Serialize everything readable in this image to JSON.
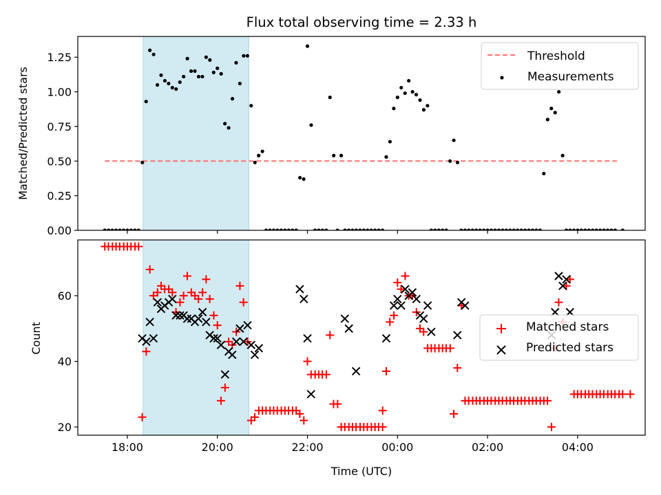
{
  "chart_data": [
    {
      "type": "scatter",
      "title": "Flux total observing time = 2.33 h",
      "xlabel": "",
      "ylabel": "Matched/Predicted stars",
      "x_unit": "hours since 00:00 of first day (UTC); values >24 are next day",
      "xlim": [
        16.9,
        29.5
      ],
      "ylim": [
        0,
        1.4
      ],
      "yticks": [
        0.0,
        0.25,
        0.5,
        0.75,
        1.0,
        1.25
      ],
      "ytick_labels": [
        "0.00",
        "0.25",
        "0.50",
        "0.75",
        "1.00",
        "1.25"
      ],
      "xticks": [
        18,
        20,
        22,
        24,
        26,
        28
      ],
      "xtick_labels": [
        "18:00",
        "20:00",
        "22:00",
        "00:00",
        "02:00",
        "04:00"
      ],
      "shaded_span": {
        "start": 18.35,
        "end": 20.7,
        "color": "#add8e6"
      },
      "threshold": {
        "name": "Threshold",
        "value": 0.5,
        "x_range": [
          17.5,
          28.9
        ],
        "color": "#ff7070",
        "style": "dashed"
      },
      "series": [
        {
          "name": "Measurements",
          "marker": "dot",
          "color": "#000000",
          "start": 17.5,
          "step_min": 5,
          "values": [
            0,
            0,
            0,
            0,
            0,
            0,
            0,
            0,
            0,
            0,
            0.49,
            0.93,
            1.3,
            1.27,
            1.05,
            1.12,
            1.08,
            1.06,
            1.03,
            1.02,
            1.07,
            1.11,
            1.24,
            1.15,
            1.15,
            1.11,
            1.11,
            1.25,
            1.23,
            1.14,
            1.17,
            1.13,
            0.77,
            0.74,
            0.95,
            1.21,
            1.06,
            1.26,
            1.26,
            0.9,
            0.49,
            0.54,
            0.57,
            0,
            0,
            0,
            0,
            0,
            0,
            0,
            0,
            0,
            0.38,
            0.37,
            1.33,
            0.76,
            0,
            0,
            0,
            0,
            0.96,
            0.54,
            0,
            0.54,
            0,
            0,
            0,
            0,
            0,
            0,
            0,
            0,
            0,
            0,
            0,
            0.53,
            0.64,
            0.88,
            0.96,
            1.03,
            0.99,
            1.08,
            1.0,
            0.98,
            0.94,
            0.87,
            0.9,
            0,
            0,
            0,
            0,
            0,
            0.5,
            0.65,
            0.49,
            0,
            0,
            0,
            0,
            0,
            0,
            0,
            0,
            0,
            0,
            0,
            0,
            0,
            0,
            0,
            0,
            0,
            0,
            0,
            0,
            0,
            0,
            0.41,
            0.8,
            0.88,
            0.85,
            1.0,
            0.54,
            0,
            0,
            0,
            0,
            0,
            0,
            0,
            0,
            0,
            0,
            0,
            0,
            0,
            0,
            null,
            0
          ]
        }
      ],
      "legend": {
        "position": "top-right",
        "entries": [
          "Threshold",
          "Measurements"
        ]
      }
    },
    {
      "type": "scatter",
      "title": "",
      "xlabel": "Time (UTC)",
      "ylabel": "Count",
      "xlim": [
        16.9,
        29.5
      ],
      "ylim": [
        17.5,
        77
      ],
      "yticks": [
        20,
        40,
        60
      ],
      "ytick_labels": [
        "20",
        "40",
        "60"
      ],
      "xticks": [
        18,
        20,
        22,
        24,
        26,
        28
      ],
      "xtick_labels": [
        "18:00",
        "20:00",
        "22:00",
        "00:00",
        "02:00",
        "04:00"
      ],
      "shaded_span": {
        "start": 18.35,
        "end": 20.7,
        "color": "#add8e6"
      },
      "series": [
        {
          "name": "Matched stars",
          "marker": "plus",
          "color": "#ff0000",
          "points": [
            [
              17.5,
              75
            ],
            [
              17.58,
              75
            ],
            [
              17.67,
              75
            ],
            [
              17.75,
              75
            ],
            [
              17.83,
              75
            ],
            [
              17.92,
              75
            ],
            [
              18.0,
              75
            ],
            [
              18.08,
              75
            ],
            [
              18.17,
              75
            ],
            [
              18.25,
              75
            ],
            [
              18.33,
              23
            ],
            [
              18.42,
              43
            ],
            [
              18.5,
              68
            ],
            [
              18.58,
              60
            ],
            [
              18.67,
              61
            ],
            [
              18.75,
              63
            ],
            [
              18.83,
              62
            ],
            [
              18.92,
              62
            ],
            [
              19.0,
              61
            ],
            [
              19.08,
              55
            ],
            [
              19.17,
              58
            ],
            [
              19.25,
              60
            ],
            [
              19.33,
              66
            ],
            [
              19.42,
              61
            ],
            [
              19.5,
              60
            ],
            [
              19.58,
              59
            ],
            [
              19.67,
              61
            ],
            [
              19.75,
              65
            ],
            [
              19.83,
              59
            ],
            [
              19.92,
              54
            ],
            [
              20.0,
              51
            ],
            [
              20.08,
              28
            ],
            [
              20.17,
              32
            ],
            [
              20.25,
              46
            ],
            [
              20.33,
              45
            ],
            [
              20.42,
              49
            ],
            [
              20.5,
              63
            ],
            [
              20.58,
              58
            ],
            [
              20.67,
              46
            ],
            [
              20.75,
              22
            ],
            [
              20.83,
              23
            ],
            [
              20.92,
              25
            ],
            [
              21.0,
              25
            ],
            [
              21.08,
              25
            ],
            [
              21.17,
              25
            ],
            [
              21.25,
              25
            ],
            [
              21.33,
              25
            ],
            [
              21.42,
              25
            ],
            [
              21.5,
              25
            ],
            [
              21.58,
              25
            ],
            [
              21.67,
              25
            ],
            [
              21.75,
              25
            ],
            [
              21.83,
              24
            ],
            [
              21.92,
              22
            ],
            [
              22.0,
              40
            ],
            [
              22.08,
              36
            ],
            [
              22.17,
              36
            ],
            [
              22.25,
              36
            ],
            [
              22.33,
              36
            ],
            [
              22.42,
              36
            ],
            [
              22.5,
              48
            ],
            [
              22.58,
              27
            ],
            [
              22.67,
              27
            ],
            [
              22.75,
              20
            ],
            [
              22.83,
              20
            ],
            [
              22.92,
              20
            ],
            [
              23.0,
              20
            ],
            [
              23.08,
              20
            ],
            [
              23.17,
              20
            ],
            [
              23.25,
              20
            ],
            [
              23.33,
              20
            ],
            [
              23.42,
              20
            ],
            [
              23.5,
              20
            ],
            [
              23.58,
              20
            ],
            [
              23.67,
              20
            ],
            [
              23.67,
              25
            ],
            [
              23.75,
              37
            ],
            [
              23.83,
              52
            ],
            [
              23.92,
              54
            ],
            [
              24.0,
              64
            ],
            [
              24.08,
              62
            ],
            [
              24.17,
              66
            ],
            [
              24.25,
              60
            ],
            [
              24.33,
              60
            ],
            [
              24.42,
              55
            ],
            [
              24.5,
              50
            ],
            [
              24.58,
              49
            ],
            [
              24.67,
              44
            ],
            [
              24.75,
              44
            ],
            [
              24.83,
              44
            ],
            [
              24.92,
              44
            ],
            [
              25.0,
              44
            ],
            [
              25.08,
              44
            ],
            [
              25.17,
              44
            ],
            [
              25.25,
              24
            ],
            [
              25.33,
              38
            ],
            [
              25.42,
              57
            ],
            [
              25.5,
              28
            ],
            [
              25.58,
              28
            ],
            [
              25.67,
              28
            ],
            [
              25.75,
              28
            ],
            [
              25.83,
              28
            ],
            [
              25.92,
              28
            ],
            [
              26.0,
              28
            ],
            [
              26.08,
              28
            ],
            [
              26.17,
              28
            ],
            [
              26.25,
              28
            ],
            [
              26.33,
              28
            ],
            [
              26.42,
              28
            ],
            [
              26.5,
              28
            ],
            [
              26.58,
              28
            ],
            [
              26.67,
              28
            ],
            [
              26.75,
              28
            ],
            [
              26.83,
              28
            ],
            [
              26.92,
              28
            ],
            [
              27.0,
              28
            ],
            [
              27.08,
              28
            ],
            [
              27.17,
              28
            ],
            [
              27.25,
              28
            ],
            [
              27.33,
              28
            ],
            [
              27.42,
              20
            ],
            [
              27.5,
              44
            ],
            [
              27.58,
              58
            ],
            [
              27.67,
              52
            ],
            [
              27.75,
              63
            ],
            [
              27.83,
              65
            ],
            [
              27.92,
              30
            ],
            [
              28.0,
              30
            ],
            [
              28.08,
              30
            ],
            [
              28.17,
              30
            ],
            [
              28.25,
              30
            ],
            [
              28.33,
              30
            ],
            [
              28.42,
              30
            ],
            [
              28.5,
              30
            ],
            [
              28.58,
              30
            ],
            [
              28.67,
              30
            ],
            [
              28.75,
              30
            ],
            [
              28.83,
              30
            ],
            [
              28.92,
              30
            ],
            [
              29.0,
              30
            ],
            [
              29.17,
              30
            ]
          ]
        },
        {
          "name": "Predicted stars",
          "marker": "x",
          "color": "#000000",
          "points": [
            [
              18.33,
              47
            ],
            [
              18.42,
              46
            ],
            [
              18.5,
              52
            ],
            [
              18.58,
              47
            ],
            [
              18.67,
              58
            ],
            [
              18.75,
              56
            ],
            [
              18.83,
              57
            ],
            [
              18.92,
              58
            ],
            [
              19.0,
              59
            ],
            [
              19.08,
              54
            ],
            [
              19.17,
              54
            ],
            [
              19.25,
              54
            ],
            [
              19.33,
              53
            ],
            [
              19.42,
              53
            ],
            [
              19.5,
              52
            ],
            [
              19.58,
              53
            ],
            [
              19.67,
              55
            ],
            [
              19.75,
              52
            ],
            [
              19.83,
              48
            ],
            [
              19.92,
              47
            ],
            [
              20.0,
              47
            ],
            [
              20.08,
              45
            ],
            [
              20.17,
              36
            ],
            [
              20.25,
              43
            ],
            [
              20.33,
              42
            ],
            [
              20.42,
              46
            ],
            [
              20.5,
              50
            ],
            [
              20.58,
              46
            ],
            [
              20.67,
              51
            ],
            [
              20.75,
              45
            ],
            [
              20.83,
              42
            ],
            [
              20.92,
              44
            ],
            [
              21.83,
              62
            ],
            [
              21.92,
              59
            ],
            [
              22.0,
              47
            ],
            [
              22.08,
              30
            ],
            [
              22.83,
              53
            ],
            [
              22.92,
              50
            ],
            [
              23.08,
              37
            ],
            [
              23.75,
              47
            ],
            [
              23.92,
              57
            ],
            [
              24.0,
              59
            ],
            [
              24.08,
              57
            ],
            [
              24.17,
              62
            ],
            [
              24.25,
              60
            ],
            [
              24.33,
              61
            ],
            [
              24.42,
              59
            ],
            [
              24.5,
              54
            ],
            [
              24.58,
              53
            ],
            [
              24.67,
              57
            ],
            [
              24.75,
              49
            ],
            [
              25.33,
              48
            ],
            [
              25.42,
              58
            ],
            [
              25.5,
              57
            ],
            [
              27.42,
              48
            ],
            [
              27.5,
              55
            ],
            [
              27.58,
              66
            ],
            [
              27.67,
              63
            ],
            [
              27.75,
              65
            ],
            [
              27.83,
              55
            ]
          ]
        }
      ],
      "legend": {
        "position": "center-right",
        "entries": [
          "Matched stars",
          "Predicted stars"
        ]
      }
    }
  ]
}
